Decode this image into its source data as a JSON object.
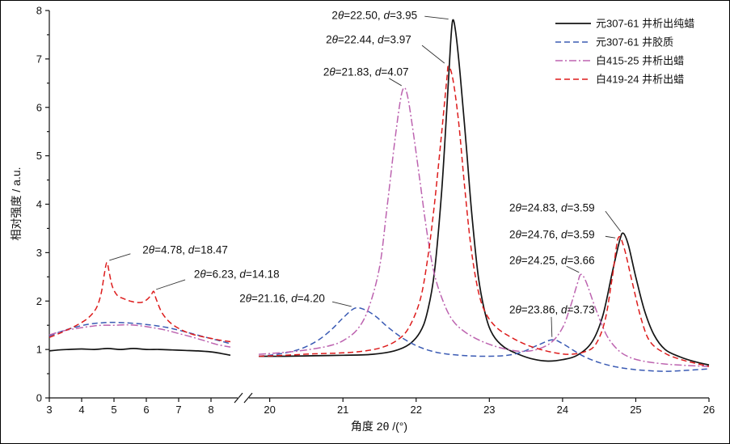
{
  "chart_data": {
    "type": "line",
    "title": "",
    "xlabel": "角度 2θ /(°)",
    "ylabel": "相对强度 / a.u.",
    "ylim": [
      0,
      8
    ],
    "y_ticks": [
      0,
      1,
      2,
      3,
      4,
      5,
      6,
      7,
      8
    ],
    "grid": false,
    "legend_position": "top-right",
    "x_axis_break": {
      "between": [
        8.8,
        19.75
      ]
    },
    "x_segments": [
      {
        "range": [
          3,
          8.8
        ],
        "ticks": [
          3,
          4,
          5,
          6,
          7,
          8
        ]
      },
      {
        "range": [
          19.75,
          26
        ],
        "ticks": [
          20,
          21,
          22,
          23,
          24,
          25,
          26
        ]
      }
    ],
    "series": [
      {
        "name": "元307-61 井析出纯蜡",
        "color": "#141414",
        "line_style": "solid",
        "points_low_angle": [
          [
            3,
            0.97
          ],
          [
            3.3,
            0.99
          ],
          [
            3.6,
            1.0
          ],
          [
            4,
            1.01
          ],
          [
            4.4,
            1.0
          ],
          [
            4.8,
            1.02
          ],
          [
            5.2,
            1.0
          ],
          [
            5.6,
            1.02
          ],
          [
            6,
            1.0
          ],
          [
            6.4,
            1.0
          ],
          [
            6.8,
            0.99
          ],
          [
            7.2,
            0.98
          ],
          [
            7.6,
            0.97
          ],
          [
            8,
            0.95
          ],
          [
            8.3,
            0.92
          ],
          [
            8.6,
            0.88
          ]
        ],
        "points_high_angle": [
          [
            19.85,
            0.86
          ],
          [
            20.2,
            0.86
          ],
          [
            20.6,
            0.87
          ],
          [
            21,
            0.88
          ],
          [
            21.4,
            0.9
          ],
          [
            21.7,
            0.97
          ],
          [
            21.9,
            1.1
          ],
          [
            22.05,
            1.35
          ],
          [
            22.15,
            1.75
          ],
          [
            22.25,
            2.6
          ],
          [
            22.35,
            4.3
          ],
          [
            22.42,
            6.0
          ],
          [
            22.47,
            7.3
          ],
          [
            22.5,
            7.8
          ],
          [
            22.54,
            7.55
          ],
          [
            22.6,
            6.7
          ],
          [
            22.68,
            5.3
          ],
          [
            22.76,
            3.8
          ],
          [
            22.85,
            2.5
          ],
          [
            22.95,
            1.7
          ],
          [
            23.05,
            1.3
          ],
          [
            23.2,
            1.05
          ],
          [
            23.4,
            0.9
          ],
          [
            23.6,
            0.8
          ],
          [
            23.8,
            0.76
          ],
          [
            24,
            0.79
          ],
          [
            24.2,
            0.88
          ],
          [
            24.4,
            1.15
          ],
          [
            24.55,
            1.7
          ],
          [
            24.68,
            2.6
          ],
          [
            24.78,
            3.25
          ],
          [
            24.83,
            3.4
          ],
          [
            24.9,
            3.15
          ],
          [
            25,
            2.5
          ],
          [
            25.12,
            1.8
          ],
          [
            25.25,
            1.3
          ],
          [
            25.4,
            1.0
          ],
          [
            25.6,
            0.85
          ],
          [
            25.8,
            0.75
          ],
          [
            26,
            0.68
          ]
        ]
      },
      {
        "name": "元307-61 井胶质",
        "color": "#3b5bb4",
        "line_style": "dashed",
        "points_low_angle": [
          [
            3,
            1.28
          ],
          [
            3.4,
            1.38
          ],
          [
            3.8,
            1.46
          ],
          [
            4.2,
            1.52
          ],
          [
            4.6,
            1.55
          ],
          [
            5,
            1.56
          ],
          [
            5.4,
            1.55
          ],
          [
            5.8,
            1.53
          ],
          [
            6.2,
            1.5
          ],
          [
            6.6,
            1.46
          ],
          [
            7,
            1.4
          ],
          [
            7.4,
            1.33
          ],
          [
            7.8,
            1.26
          ],
          [
            8.2,
            1.19
          ],
          [
            8.6,
            1.12
          ]
        ],
        "points_high_angle": [
          [
            19.85,
            0.86
          ],
          [
            20.1,
            0.9
          ],
          [
            20.4,
            1.0
          ],
          [
            20.65,
            1.18
          ],
          [
            20.85,
            1.42
          ],
          [
            21,
            1.65
          ],
          [
            21.16,
            1.85
          ],
          [
            21.3,
            1.82
          ],
          [
            21.45,
            1.68
          ],
          [
            21.6,
            1.48
          ],
          [
            21.8,
            1.25
          ],
          [
            22,
            1.08
          ],
          [
            22.2,
            0.97
          ],
          [
            22.4,
            0.91
          ],
          [
            22.7,
            0.87
          ],
          [
            23,
            0.86
          ],
          [
            23.25,
            0.88
          ],
          [
            23.45,
            0.95
          ],
          [
            23.65,
            1.08
          ],
          [
            23.86,
            1.2
          ],
          [
            24,
            1.12
          ],
          [
            24.15,
            0.98
          ],
          [
            24.3,
            0.85
          ],
          [
            24.5,
            0.73
          ],
          [
            24.7,
            0.65
          ],
          [
            24.9,
            0.6
          ],
          [
            25.1,
            0.57
          ],
          [
            25.4,
            0.55
          ],
          [
            25.7,
            0.57
          ],
          [
            26,
            0.6
          ]
        ]
      },
      {
        "name": "白415-25 井析出蜡",
        "color": "#bd64b0",
        "line_style": "dashdot",
        "points_low_angle": [
          [
            3,
            1.3
          ],
          [
            3.4,
            1.38
          ],
          [
            3.8,
            1.43
          ],
          [
            4.2,
            1.47
          ],
          [
            4.6,
            1.5
          ],
          [
            5,
            1.5
          ],
          [
            5.4,
            1.51
          ],
          [
            5.8,
            1.49
          ],
          [
            6.2,
            1.45
          ],
          [
            6.6,
            1.4
          ],
          [
            7,
            1.33
          ],
          [
            7.4,
            1.26
          ],
          [
            7.8,
            1.18
          ],
          [
            8.2,
            1.1
          ],
          [
            8.6,
            1.05
          ]
        ],
        "points_high_angle": [
          [
            19.85,
            0.9
          ],
          [
            20.2,
            0.94
          ],
          [
            20.5,
            0.99
          ],
          [
            20.8,
            1.07
          ],
          [
            21,
            1.18
          ],
          [
            21.2,
            1.42
          ],
          [
            21.35,
            1.85
          ],
          [
            21.5,
            2.7
          ],
          [
            21.6,
            3.9
          ],
          [
            21.7,
            5.2
          ],
          [
            21.78,
            6.1
          ],
          [
            21.83,
            6.4
          ],
          [
            21.88,
            6.25
          ],
          [
            21.95,
            5.6
          ],
          [
            22.05,
            4.5
          ],
          [
            22.15,
            3.4
          ],
          [
            22.25,
            2.55
          ],
          [
            22.38,
            1.95
          ],
          [
            22.5,
            1.6
          ],
          [
            22.65,
            1.38
          ],
          [
            22.85,
            1.2
          ],
          [
            23.05,
            1.08
          ],
          [
            23.25,
            1.0
          ],
          [
            23.45,
            0.96
          ],
          [
            23.65,
            1.0
          ],
          [
            23.85,
            1.15
          ],
          [
            24,
            1.45
          ],
          [
            24.1,
            1.85
          ],
          [
            24.2,
            2.35
          ],
          [
            24.25,
            2.55
          ],
          [
            24.32,
            2.4
          ],
          [
            24.45,
            1.85
          ],
          [
            24.6,
            1.3
          ],
          [
            24.75,
            1.0
          ],
          [
            24.9,
            0.85
          ],
          [
            25.1,
            0.76
          ],
          [
            25.4,
            0.7
          ],
          [
            25.7,
            0.67
          ],
          [
            26,
            0.65
          ]
        ]
      },
      {
        "name": "白419-24 井析出蜡",
        "color": "#dd1c1c",
        "line_style": "dashed",
        "points_low_angle": [
          [
            3,
            1.25
          ],
          [
            3.3,
            1.33
          ],
          [
            3.6,
            1.42
          ],
          [
            3.9,
            1.52
          ],
          [
            4.2,
            1.65
          ],
          [
            4.45,
            1.85
          ],
          [
            4.6,
            2.15
          ],
          [
            4.7,
            2.55
          ],
          [
            4.78,
            2.8
          ],
          [
            4.85,
            2.6
          ],
          [
            4.95,
            2.3
          ],
          [
            5.1,
            2.12
          ],
          [
            5.3,
            2.05
          ],
          [
            5.5,
            2.0
          ],
          [
            5.7,
            1.97
          ],
          [
            5.9,
            1.98
          ],
          [
            6.05,
            2.05
          ],
          [
            6.15,
            2.13
          ],
          [
            6.23,
            2.2
          ],
          [
            6.3,
            2.05
          ],
          [
            6.45,
            1.8
          ],
          [
            6.6,
            1.65
          ],
          [
            6.8,
            1.52
          ],
          [
            7.1,
            1.4
          ],
          [
            7.4,
            1.32
          ],
          [
            7.7,
            1.27
          ],
          [
            8,
            1.23
          ],
          [
            8.3,
            1.19
          ],
          [
            8.6,
            1.16
          ]
        ],
        "points_high_angle": [
          [
            19.85,
            0.86
          ],
          [
            20.2,
            0.88
          ],
          [
            20.6,
            0.91
          ],
          [
            21,
            0.93
          ],
          [
            21.3,
            0.97
          ],
          [
            21.55,
            1.05
          ],
          [
            21.75,
            1.2
          ],
          [
            21.9,
            1.45
          ],
          [
            22.05,
            2.0
          ],
          [
            22.15,
            2.8
          ],
          [
            22.25,
            4.0
          ],
          [
            22.35,
            5.5
          ],
          [
            22.42,
            6.6
          ],
          [
            22.44,
            6.85
          ],
          [
            22.5,
            6.6
          ],
          [
            22.58,
            5.7
          ],
          [
            22.66,
            4.4
          ],
          [
            22.75,
            3.1
          ],
          [
            22.85,
            2.2
          ],
          [
            22.95,
            1.75
          ],
          [
            23.1,
            1.45
          ],
          [
            23.3,
            1.25
          ],
          [
            23.5,
            1.1
          ],
          [
            23.7,
            1.0
          ],
          [
            23.9,
            0.93
          ],
          [
            24.1,
            0.9
          ],
          [
            24.3,
            0.95
          ],
          [
            24.45,
            1.1
          ],
          [
            24.58,
            1.6
          ],
          [
            24.68,
            2.5
          ],
          [
            24.76,
            3.3
          ],
          [
            24.84,
            3.1
          ],
          [
            24.95,
            2.4
          ],
          [
            25.08,
            1.6
          ],
          [
            25.2,
            1.15
          ],
          [
            25.4,
            0.92
          ],
          [
            25.6,
            0.8
          ],
          [
            25.8,
            0.72
          ],
          [
            26,
            0.65
          ]
        ]
      }
    ],
    "annotations": [
      {
        "text": "2θ=22.50, d=3.95",
        "peak": {
          "series": "元307-61 井析出纯蜡",
          "x": 22.5,
          "y": 7.8
        },
        "tx": 0.493,
        "ty": 0.013,
        "line": [
          0.569,
          0.015,
          0.605,
          0.022
        ]
      },
      {
        "text": "2θ=22.44, d=3.97",
        "peak": {
          "series": "白419-24 井析出蜡",
          "x": 22.44,
          "y": 6.85
        },
        "tx": 0.484,
        "ty": 0.075,
        "line": [
          0.565,
          0.09,
          0.599,
          0.136
        ]
      },
      {
        "text": "2θ=21.83, d=4.07",
        "peak": {
          "series": "白415-25 井析出蜡",
          "x": 21.83,
          "y": 6.4
        },
        "tx": 0.48,
        "ty": 0.159,
        "line": [
          0.515,
          0.175,
          0.534,
          0.194
        ]
      },
      {
        "text": "2θ=24.83, d=3.59",
        "peak": {
          "series": "元307-61 井析出纯蜡",
          "x": 24.83,
          "y": 3.4
        },
        "tx": 0.762,
        "ty": 0.509,
        "line": [
          0.843,
          0.518,
          0.866,
          0.57
        ]
      },
      {
        "text": "2θ=24.76, d=3.59",
        "peak": {
          "series": "白419-24 井析出蜡",
          "x": 24.76,
          "y": 3.3
        },
        "tx": 0.762,
        "ty": 0.578,
        "line": [
          0.843,
          0.583,
          0.858,
          0.587
        ]
      },
      {
        "text": "2θ=24.25, d=3.66",
        "peak": {
          "series": "白415-25 井析出蜡",
          "x": 24.25,
          "y": 2.55
        },
        "tx": 0.762,
        "ty": 0.645,
        "line": [
          0.784,
          0.66,
          0.803,
          0.676
        ]
      },
      {
        "text": "2θ=23.86, d=3.73",
        "peak": {
          "series": "元307-61 井胶质",
          "x": 23.86,
          "y": 1.2
        },
        "tx": 0.762,
        "ty": 0.772,
        "line": [
          0.761,
          0.791,
          0.762,
          0.843
        ]
      },
      {
        "text": "2θ=4.78, d=18.47",
        "peak": {
          "series": "白419-24 井析出蜡",
          "x": 4.78,
          "y": 2.8
        },
        "tx": 0.206,
        "ty": 0.618,
        "line": [
          0.123,
          0.628,
          0.091,
          0.645
        ]
      },
      {
        "text": "2θ=6.23, d=14.18",
        "peak": {
          "series": "白419-24 井析出蜡",
          "x": 6.23,
          "y": 2.2
        },
        "tx": 0.284,
        "ty": 0.681,
        "line": [
          0.206,
          0.695,
          0.162,
          0.72
        ]
      },
      {
        "text": "2θ=21.16, d=4.20",
        "peak": {
          "series": "元307-61 井胶质",
          "x": 21.16,
          "y": 1.85
        },
        "tx": 0.353,
        "ty": 0.743,
        "line": [
          0.429,
          0.752,
          0.458,
          0.764
        ]
      }
    ]
  }
}
